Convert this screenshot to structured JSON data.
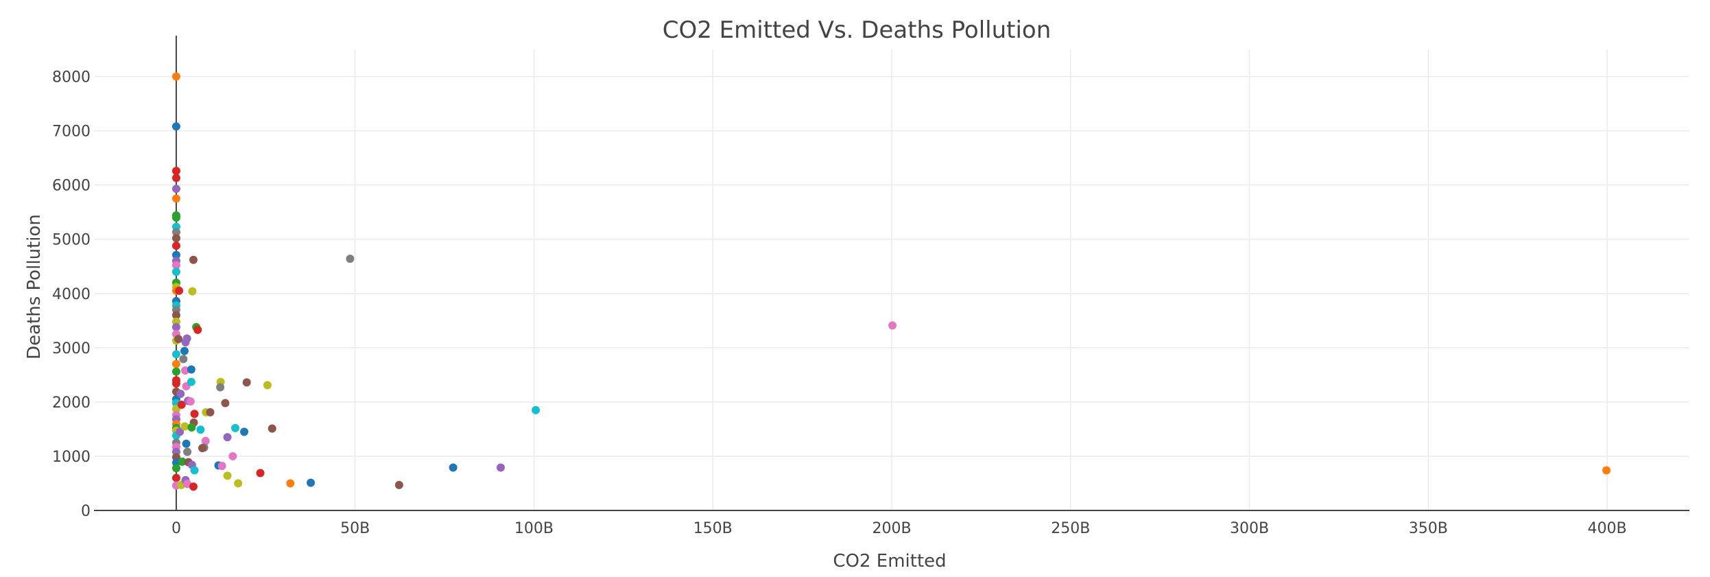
{
  "chart_data": {
    "type": "scatter",
    "title": "CO2 Emitted Vs. Deaths Pollution",
    "xlabel": "CO2 Emitted",
    "ylabel": "Deaths Pollution",
    "xlim": [
      -23000000000,
      423000000000
    ],
    "ylim": [
      0,
      8500
    ],
    "grid": true,
    "legend": "none",
    "x_ticks": [
      {
        "value": 0,
        "label": "0"
      },
      {
        "value": 50000000000,
        "label": "50B"
      },
      {
        "value": 100000000000,
        "label": "100B"
      },
      {
        "value": 150000000000,
        "label": "150B"
      },
      {
        "value": 200000000000,
        "label": "200B"
      },
      {
        "value": 250000000000,
        "label": "250B"
      },
      {
        "value": 300000000000,
        "label": "300B"
      },
      {
        "value": 350000000000,
        "label": "350B"
      },
      {
        "value": 400000000000,
        "label": "400B"
      }
    ],
    "y_ticks": [
      {
        "value": 0,
        "label": "0"
      },
      {
        "value": 1000,
        "label": "1000"
      },
      {
        "value": 2000,
        "label": "2000"
      },
      {
        "value": 3000,
        "label": "3000"
      },
      {
        "value": 4000,
        "label": "4000"
      },
      {
        "value": 5000,
        "label": "5000"
      },
      {
        "value": 6000,
        "label": "6000"
      },
      {
        "value": 7000,
        "label": "7000"
      },
      {
        "value": 8000,
        "label": "8000"
      }
    ],
    "palette": [
      "#1f77b4",
      "#ff7f0e",
      "#2ca02c",
      "#d62728",
      "#9467bd",
      "#8c564b",
      "#e377c2",
      "#7f7f7f",
      "#bcbd22",
      "#17becf"
    ],
    "points": [
      {
        "x": 0,
        "y": 8000,
        "color": "#ff7f0e"
      },
      {
        "x": 0,
        "y": 7080,
        "color": "#1f77b4"
      },
      {
        "x": 0,
        "y": 6260,
        "color": "#d62728"
      },
      {
        "x": 0,
        "y": 6130,
        "color": "#d62728"
      },
      {
        "x": 0,
        "y": 5930,
        "color": "#9467bd"
      },
      {
        "x": 0,
        "y": 5750,
        "color": "#ff7f0e"
      },
      {
        "x": 0,
        "y": 5440,
        "color": "#2ca02c"
      },
      {
        "x": 0,
        "y": 5400,
        "color": "#2ca02c"
      },
      {
        "x": 0,
        "y": 5230,
        "color": "#17becf"
      },
      {
        "x": 0,
        "y": 5130,
        "color": "#7f7f7f"
      },
      {
        "x": 0,
        "y": 5020,
        "color": "#8c564b"
      },
      {
        "x": 0,
        "y": 4880,
        "color": "#d62728"
      },
      {
        "x": 0,
        "y": 4710,
        "color": "#1f77b4"
      },
      {
        "x": 0,
        "y": 4600,
        "color": "#9467bd"
      },
      {
        "x": 0,
        "y": 4520,
        "color": "#e377c2"
      },
      {
        "x": 0,
        "y": 4400,
        "color": "#17becf"
      },
      {
        "x": 0,
        "y": 4200,
        "color": "#2ca02c"
      },
      {
        "x": 0,
        "y": 4120,
        "color": "#bcbd22"
      },
      {
        "x": 0,
        "y": 4050,
        "color": "#ff7f0e"
      },
      {
        "x": 0,
        "y": 3860,
        "color": "#1f77b4"
      },
      {
        "x": 0,
        "y": 3780,
        "color": "#17becf"
      },
      {
        "x": 0,
        "y": 3700,
        "color": "#7f7f7f"
      },
      {
        "x": 0,
        "y": 3600,
        "color": "#8c564b"
      },
      {
        "x": 0,
        "y": 3480,
        "color": "#bcbd22"
      },
      {
        "x": 0,
        "y": 3380,
        "color": "#9467bd"
      },
      {
        "x": 0,
        "y": 3250,
        "color": "#e377c2"
      },
      {
        "x": 0,
        "y": 3130,
        "color": "#bcbd22"
      },
      {
        "x": 0,
        "y": 2880,
        "color": "#17becf"
      },
      {
        "x": 0,
        "y": 2700,
        "color": "#ff7f0e"
      },
      {
        "x": 0,
        "y": 2560,
        "color": "#2ca02c"
      },
      {
        "x": 0,
        "y": 2400,
        "color": "#d62728"
      },
      {
        "x": 0,
        "y": 2340,
        "color": "#d62728"
      },
      {
        "x": 0,
        "y": 2190,
        "color": "#8c564b"
      },
      {
        "x": 0,
        "y": 2050,
        "color": "#1f77b4"
      },
      {
        "x": 0,
        "y": 1980,
        "color": "#17becf"
      },
      {
        "x": 0,
        "y": 1870,
        "color": "#bcbd22"
      },
      {
        "x": 0,
        "y": 1760,
        "color": "#e377c2"
      },
      {
        "x": 0,
        "y": 1680,
        "color": "#9467bd"
      },
      {
        "x": 0,
        "y": 1590,
        "color": "#ff7f0e"
      },
      {
        "x": 0,
        "y": 1520,
        "color": "#2ca02c"
      },
      {
        "x": 0,
        "y": 1470,
        "color": "#bcbd22"
      },
      {
        "x": 0,
        "y": 1380,
        "color": "#17becf"
      },
      {
        "x": 0,
        "y": 1250,
        "color": "#7f7f7f"
      },
      {
        "x": 0,
        "y": 1170,
        "color": "#e377c2"
      },
      {
        "x": 0,
        "y": 1080,
        "color": "#9467bd"
      },
      {
        "x": 0,
        "y": 980,
        "color": "#8c564b"
      },
      {
        "x": 0,
        "y": 880,
        "color": "#1f77b4"
      },
      {
        "x": 0,
        "y": 780,
        "color": "#2ca02c"
      },
      {
        "x": 0,
        "y": 600,
        "color": "#d62728"
      },
      {
        "x": 0,
        "y": 460,
        "color": "#e377c2"
      },
      {
        "x": 800000000,
        "y": 4050,
        "color": "#d62728"
      },
      {
        "x": 600000000,
        "y": 3160,
        "color": "#8c564b"
      },
      {
        "x": 1200000000,
        "y": 2150,
        "color": "#9467bd"
      },
      {
        "x": 1500000000,
        "y": 1950,
        "color": "#d62728"
      },
      {
        "x": 1000000000,
        "y": 1450,
        "color": "#9467bd"
      },
      {
        "x": 1700000000,
        "y": 900,
        "color": "#2ca02c"
      },
      {
        "x": 1400000000,
        "y": 470,
        "color": "#bcbd22"
      },
      {
        "x": 2000000000,
        "y": 2790,
        "color": "#7f7f7f"
      },
      {
        "x": 2300000000,
        "y": 2940,
        "color": "#1f77b4"
      },
      {
        "x": 2600000000,
        "y": 3100,
        "color": "#9467bd"
      },
      {
        "x": 3000000000,
        "y": 3170,
        "color": "#9467bd"
      },
      {
        "x": 2500000000,
        "y": 2580,
        "color": "#e377c2"
      },
      {
        "x": 2800000000,
        "y": 2290,
        "color": "#e377c2"
      },
      {
        "x": 3300000000,
        "y": 2020,
        "color": "#9467bd"
      },
      {
        "x": 2400000000,
        "y": 1550,
        "color": "#bcbd22"
      },
      {
        "x": 2800000000,
        "y": 1230,
        "color": "#1f77b4"
      },
      {
        "x": 3100000000,
        "y": 1080,
        "color": "#7f7f7f"
      },
      {
        "x": 3400000000,
        "y": 890,
        "color": "#8c564b"
      },
      {
        "x": 2600000000,
        "y": 560,
        "color": "#9467bd"
      },
      {
        "x": 3100000000,
        "y": 490,
        "color": "#e377c2"
      },
      {
        "x": 4800000000,
        "y": 4620,
        "color": "#8c564b"
      },
      {
        "x": 4500000000,
        "y": 4040,
        "color": "#bcbd22"
      },
      {
        "x": 5600000000,
        "y": 3380,
        "color": "#2ca02c"
      },
      {
        "x": 6000000000,
        "y": 3330,
        "color": "#d62728"
      },
      {
        "x": 4200000000,
        "y": 2600,
        "color": "#1f77b4"
      },
      {
        "x": 4200000000,
        "y": 2370,
        "color": "#17becf"
      },
      {
        "x": 4000000000,
        "y": 2010,
        "color": "#e377c2"
      },
      {
        "x": 5100000000,
        "y": 1780,
        "color": "#d62728"
      },
      {
        "x": 4900000000,
        "y": 1620,
        "color": "#8c564b"
      },
      {
        "x": 4300000000,
        "y": 1530,
        "color": "#2ca02c"
      },
      {
        "x": 6800000000,
        "y": 1490,
        "color": "#17becf"
      },
      {
        "x": 4400000000,
        "y": 840,
        "color": "#9467bd"
      },
      {
        "x": 5100000000,
        "y": 740,
        "color": "#17becf"
      },
      {
        "x": 4800000000,
        "y": 440,
        "color": "#d62728"
      },
      {
        "x": 8300000000,
        "y": 1810,
        "color": "#bcbd22"
      },
      {
        "x": 9500000000,
        "y": 1810,
        "color": "#8c564b"
      },
      {
        "x": 8200000000,
        "y": 1280,
        "color": "#e377c2"
      },
      {
        "x": 7800000000,
        "y": 1160,
        "color": "#7f7f7f"
      },
      {
        "x": 7300000000,
        "y": 1150,
        "color": "#8c564b"
      },
      {
        "x": 12400000000,
        "y": 2370,
        "color": "#bcbd22"
      },
      {
        "x": 12300000000,
        "y": 2270,
        "color": "#7f7f7f"
      },
      {
        "x": 13700000000,
        "y": 1980,
        "color": "#8c564b"
      },
      {
        "x": 14300000000,
        "y": 1350,
        "color": "#9467bd"
      },
      {
        "x": 11800000000,
        "y": 830,
        "color": "#1f77b4"
      },
      {
        "x": 12800000000,
        "y": 820,
        "color": "#e377c2"
      },
      {
        "x": 14300000000,
        "y": 640,
        "color": "#bcbd22"
      },
      {
        "x": 16500000000,
        "y": 1520,
        "color": "#17becf"
      },
      {
        "x": 19000000000,
        "y": 1450,
        "color": "#1f77b4"
      },
      {
        "x": 15800000000,
        "y": 1000,
        "color": "#e377c2"
      },
      {
        "x": 17300000000,
        "y": 500,
        "color": "#bcbd22"
      },
      {
        "x": 19700000000,
        "y": 2360,
        "color": "#8c564b"
      },
      {
        "x": 23500000000,
        "y": 690,
        "color": "#d62728"
      },
      {
        "x": 25500000000,
        "y": 2310,
        "color": "#bcbd22"
      },
      {
        "x": 26800000000,
        "y": 1510,
        "color": "#8c564b"
      },
      {
        "x": 31900000000,
        "y": 500,
        "color": "#ff7f0e"
      },
      {
        "x": 37600000000,
        "y": 510,
        "color": "#1f77b4"
      },
      {
        "x": 48600000000,
        "y": 4640,
        "color": "#7f7f7f"
      },
      {
        "x": 62300000000,
        "y": 470,
        "color": "#8c564b"
      },
      {
        "x": 77400000000,
        "y": 790,
        "color": "#1f77b4"
      },
      {
        "x": 90700000000,
        "y": 790,
        "color": "#9467bd"
      },
      {
        "x": 100500000000,
        "y": 1850,
        "color": "#17becf"
      },
      {
        "x": 200200000000,
        "y": 3410,
        "color": "#e377c2"
      },
      {
        "x": 399800000000,
        "y": 740,
        "color": "#ff7f0e"
      }
    ]
  }
}
